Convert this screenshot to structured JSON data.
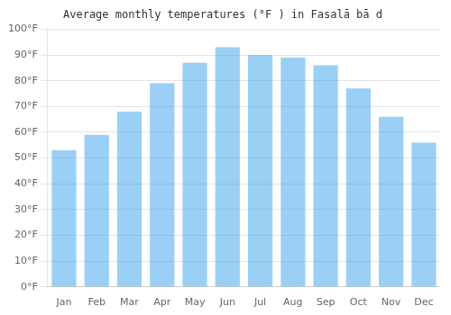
{
  "chart_data": {
    "type": "bar",
    "title": "Average monthly temperatures (°F ) in Fasalā bā d",
    "categories": [
      "Jan",
      "Feb",
      "Mar",
      "Apr",
      "May",
      "Jun",
      "Jul",
      "Aug",
      "Sep",
      "Oct",
      "Nov",
      "Dec"
    ],
    "values": [
      53,
      59,
      68,
      79,
      87,
      93,
      90,
      89,
      86,
      77,
      66,
      56
    ],
    "ylim": [
      0,
      100
    ],
    "yticks": [
      {
        "value": 0,
        "label": "0°F"
      },
      {
        "value": 10,
        "label": "10°F"
      },
      {
        "value": 20,
        "label": "20°F"
      },
      {
        "value": 30,
        "label": "30°F"
      },
      {
        "value": 40,
        "label": "40°F"
      },
      {
        "value": 50,
        "label": "50°F"
      },
      {
        "value": 60,
        "label": "60°F"
      },
      {
        "value": 70,
        "label": "70°F"
      },
      {
        "value": 80,
        "label": "80°F"
      },
      {
        "value": 90,
        "label": "90°F"
      },
      {
        "value": 100,
        "label": "100°F"
      }
    ],
    "grid": true
  }
}
